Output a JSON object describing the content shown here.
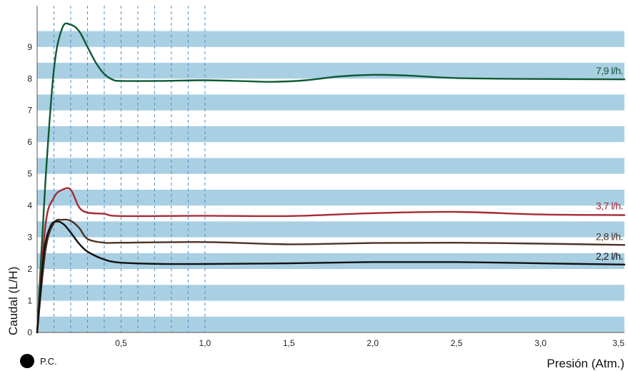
{
  "chart_data": {
    "type": "line",
    "xlabel": "Presión (Atm.)",
    "ylabel": "Caudal (L/H)",
    "xlim": [
      0,
      3.5
    ],
    "ylim": [
      0,
      10.3
    ],
    "x_ticks": [
      0.5,
      1.0,
      1.5,
      2.0,
      2.5,
      3.0,
      3.5
    ],
    "x_tick_labels": [
      "0,5",
      "1,0",
      "1,5",
      "2,0",
      "2,5",
      "3,0",
      "3,5"
    ],
    "y_ticks": [
      0,
      1,
      2,
      3,
      4,
      5,
      6,
      7,
      8,
      9
    ],
    "y_tick_labels": [
      "0",
      "1",
      "2",
      "3",
      "4",
      "5",
      "6",
      "7",
      "8",
      "9"
    ],
    "vertical_dashed_gridlines_x": [
      0.1,
      0.2,
      0.3,
      0.4,
      0.5,
      0.6,
      0.7,
      0.8,
      0.9,
      1.0
    ],
    "background": "horizontal light blue bands",
    "band_color": "#a9cfe3",
    "series": [
      {
        "name": "7,9 l/h.",
        "color": "#0e5a34",
        "x": [
          0,
          0.05,
          0.1,
          0.15,
          0.2,
          0.25,
          0.3,
          0.35,
          0.4,
          0.45,
          0.5,
          0.75,
          1.0,
          1.25,
          1.4,
          1.6,
          1.8,
          2.0,
          2.2,
          2.5,
          3.0,
          3.5
        ],
        "y": [
          0,
          4.8,
          8.3,
          9.6,
          9.7,
          9.5,
          9.0,
          8.5,
          8.15,
          7.97,
          7.93,
          7.93,
          7.95,
          7.92,
          7.9,
          7.95,
          8.07,
          8.12,
          8.1,
          8.02,
          7.99,
          7.98
        ]
      },
      {
        "name": "3,7 l/h.",
        "color": "#a52a35",
        "x": [
          0,
          0.05,
          0.1,
          0.15,
          0.2,
          0.25,
          0.3,
          0.4,
          0.5,
          1.0,
          1.5,
          2.0,
          2.5,
          3.0,
          3.5
        ],
        "y": [
          0,
          3.4,
          4.25,
          4.5,
          4.5,
          3.95,
          3.78,
          3.74,
          3.67,
          3.68,
          3.67,
          3.76,
          3.8,
          3.72,
          3.7
        ]
      },
      {
        "name": "2,8 l/h.",
        "color": "#4b3324",
        "x": [
          0,
          0.05,
          0.1,
          0.15,
          0.2,
          0.25,
          0.3,
          0.4,
          0.5,
          1.0,
          1.5,
          2.0,
          2.5,
          3.0,
          3.5
        ],
        "y": [
          0,
          2.6,
          3.45,
          3.55,
          3.52,
          3.3,
          2.95,
          2.83,
          2.83,
          2.85,
          2.78,
          2.82,
          2.83,
          2.8,
          2.76
        ]
      },
      {
        "name": "2,2 l/h.",
        "color": "#111111",
        "x": [
          0,
          0.04,
          0.08,
          0.12,
          0.16,
          0.2,
          0.25,
          0.3,
          0.4,
          0.5,
          0.75,
          1.0,
          1.5,
          2.0,
          2.5,
          3.0,
          3.5
        ],
        "y": [
          0,
          2.5,
          3.35,
          3.5,
          3.4,
          3.15,
          2.8,
          2.55,
          2.3,
          2.2,
          2.16,
          2.16,
          2.18,
          2.22,
          2.22,
          2.18,
          2.14
        ]
      }
    ],
    "legend": {
      "label": "P.C.",
      "placement": "bottom-left"
    }
  }
}
